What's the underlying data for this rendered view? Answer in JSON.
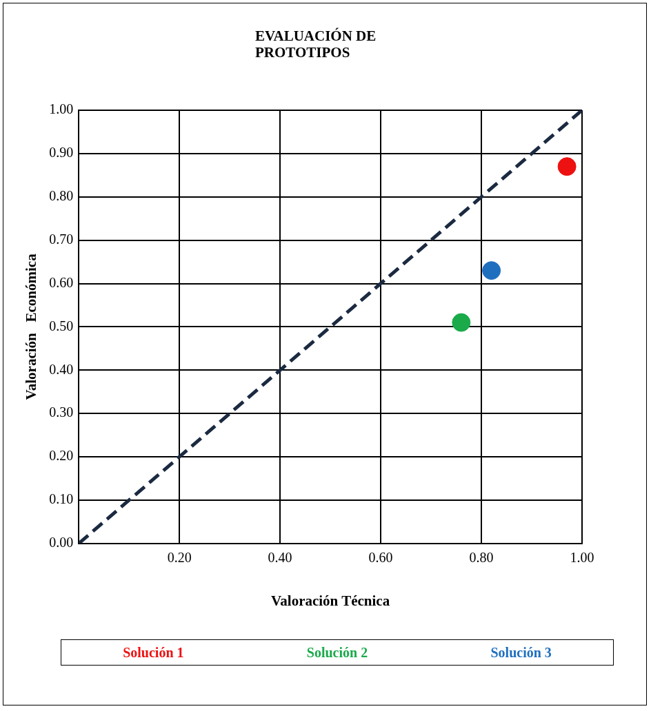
{
  "chart_data": {
    "type": "scatter",
    "title": "EVALUACIÓN DE PROTOTIPOS",
    "xlabel": "Valoración Técnica",
    "ylabel": "Valoración   Económica",
    "xlim": [
      0,
      1
    ],
    "xticks": [
      {
        "value": 0.2,
        "label": "0.20"
      },
      {
        "value": 0.4,
        "label": "0.40"
      },
      {
        "value": 0.6,
        "label": "0.60"
      },
      {
        "value": 0.8,
        "label": "0.80"
      },
      {
        "value": 1,
        "label": "1.00"
      }
    ],
    "ylim": [
      0,
      1
    ],
    "yticks": [
      {
        "value": 0,
        "label": "0.00"
      },
      {
        "value": 0.1,
        "label": "0.10"
      },
      {
        "value": 0.2,
        "label": "0.20"
      },
      {
        "value": 0.3,
        "label": "0.30"
      },
      {
        "value": 0.4,
        "label": "0.40"
      },
      {
        "value": 0.5,
        "label": "0.50"
      },
      {
        "value": 0.6,
        "label": "0.60"
      },
      {
        "value": 0.7,
        "label": "0.70"
      },
      {
        "value": 0.8,
        "label": "0.80"
      },
      {
        "value": 0.9,
        "label": "0.90"
      },
      {
        "value": 1,
        "label": "1.00"
      }
    ],
    "grid": true,
    "legend": "bottom",
    "marker": "circle",
    "series": [
      {
        "type": "line",
        "x": [
          0,
          1
        ],
        "values": [
          0,
          1
        ],
        "color": "#1b2a41",
        "line_style": "dashed",
        "marker": "none"
      },
      {
        "name": "Solución 1",
        "x": [
          0.97
        ],
        "values": [
          0.87
        ],
        "color": "#ee1111"
      },
      {
        "name": "Solución 2",
        "x": [
          0.76
        ],
        "values": [
          0.51
        ],
        "color": "#1aaa4a"
      },
      {
        "name": "Solución 3",
        "x": [
          0.82
        ],
        "values": [
          0.63
        ],
        "color": "#1f6fbf"
      }
    ]
  }
}
